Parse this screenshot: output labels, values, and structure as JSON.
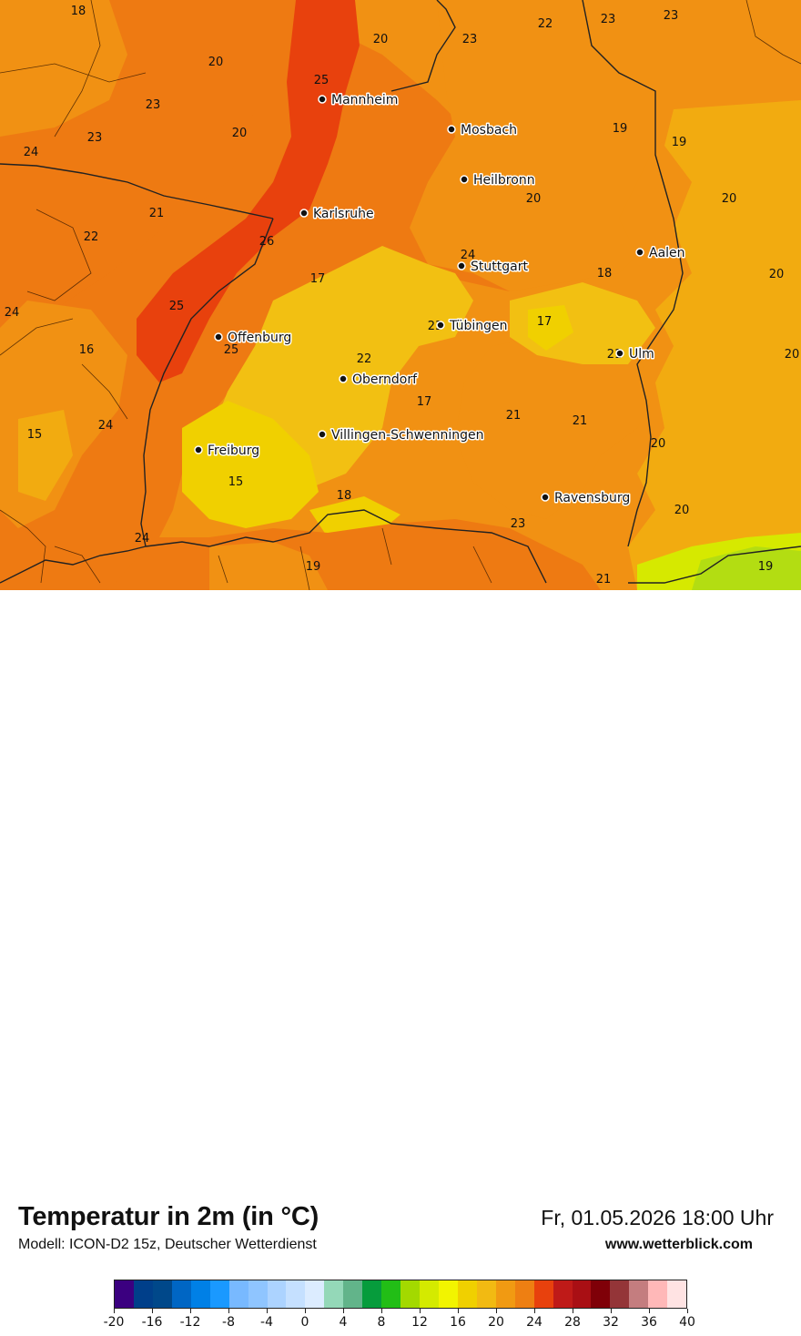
{
  "title": "Temperatur in 2m (in °C)",
  "model": "Modell: ICON-D2 15z, Deutscher Wetterdienst",
  "datetime": "Fr, 01.05.2026 18:00 Uhr",
  "website": "www.wetterblick.com",
  "colors": {
    "c15": "#f0d000",
    "c17": "#f2c012",
    "c19": "#f2ab10",
    "c21": "#f19113",
    "c23": "#ee7a12",
    "c25": "#e8410d",
    "c13": "#d6e900",
    "c11": "#b3dd12"
  },
  "cities": [
    {
      "name": "Mannheim"
    },
    {
      "name": "Mosbach"
    },
    {
      "name": "Heilbronn"
    },
    {
      "name": "Karlsruhe"
    },
    {
      "name": "Stuttgart"
    },
    {
      "name": "Aalen"
    },
    {
      "name": "Tübingen"
    },
    {
      "name": "Offenburg"
    },
    {
      "name": "Ulm"
    },
    {
      "name": "Oberndorf"
    },
    {
      "name": "Villingen-Schwenningen"
    },
    {
      "name": "Freiburg"
    },
    {
      "name": "Ravensburg"
    }
  ],
  "values": [
    "18",
    "20",
    "23",
    "23",
    "23",
    "22",
    "20",
    "23",
    "25",
    "20",
    "23",
    "19",
    "19",
    "24",
    "21",
    "22",
    "26",
    "24",
    "20",
    "20",
    "17",
    "18",
    "20",
    "24",
    "25",
    "25",
    "16",
    "23",
    "17",
    "21",
    "20",
    "22",
    "17",
    "21",
    "21",
    "24",
    "15",
    "20",
    "15",
    "18",
    "23",
    "20",
    "24",
    "19",
    "21",
    "19"
  ],
  "legend": {
    "colors": [
      "#3b0080",
      "#003f8a",
      "#00488a",
      "#0066c4",
      "#0080e6",
      "#1a99ff",
      "#78b9ff",
      "#8fc5ff",
      "#acd3ff",
      "#c5e0ff",
      "#dcecff",
      "#94d8b8",
      "#62b48a",
      "#069c3c",
      "#22be16",
      "#a3d900",
      "#d4ea00",
      "#f2f400",
      "#f0d000",
      "#f2ba12",
      "#f19a12",
      "#ee7f12",
      "#e8410d",
      "#bf1a18",
      "#a90f14",
      "#7f0008",
      "#943538",
      "#c47d7f",
      "#ffb8b8",
      "#ffe3e3"
    ],
    "ticks": [
      "-20",
      "-16",
      "-12",
      "-8",
      "-4",
      "0",
      "4",
      "8",
      "12",
      "16",
      "20",
      "24",
      "28",
      "32",
      "36",
      "40"
    ]
  }
}
